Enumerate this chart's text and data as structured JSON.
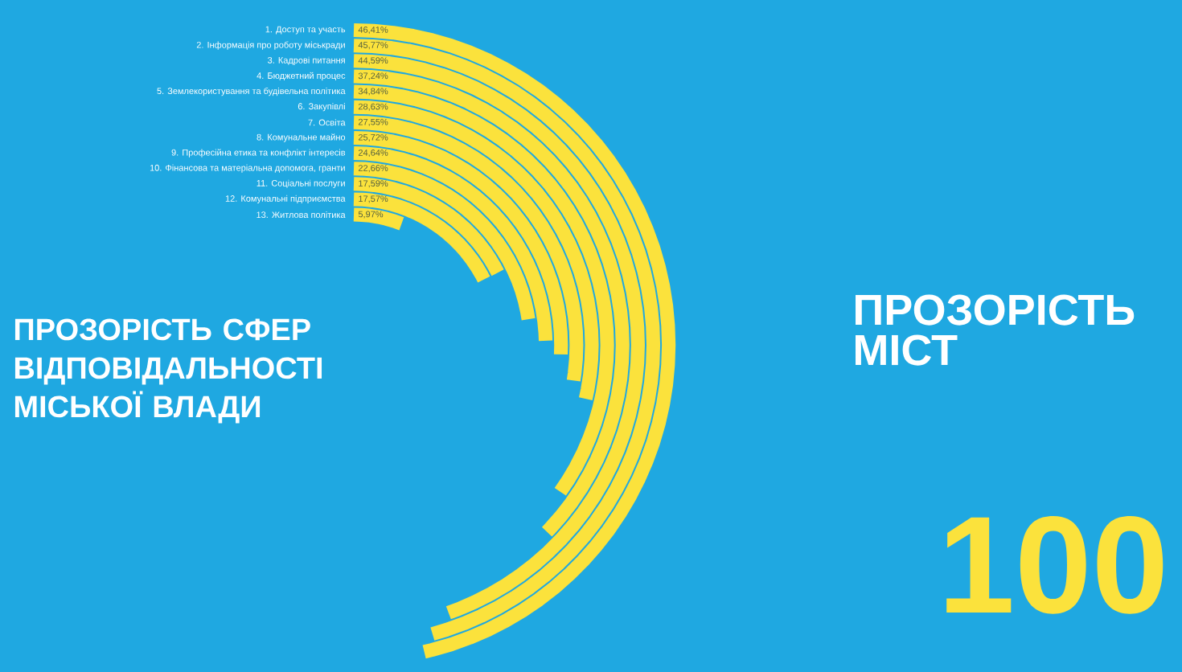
{
  "chart_data": {
    "type": "other",
    "title": "ПРОЗОРІСТЬ СФЕР ВІДПОВІДАЛЬНОСТІ МІСЬКОЇ ВЛАДИ",
    "categories": [
      "1. Доступ та участь",
      "2. Інформація про роботу міськради",
      "3. Кадрові питання",
      "4. Бюджетний процес",
      "5. Землекористування та будівельна політика",
      "6. Закупівлі",
      "7. Освіта",
      "8. Комунальне майно",
      "9. Професійна етика та конфлікт інтересів",
      "10. Фінансова та матеріальна допомога, гранти",
      "11. Соціальні послуги",
      "12. Комунальні підприємства",
      "13. Житлова політика"
    ],
    "values": [
      46.41,
      45.77,
      44.59,
      37.24,
      34.84,
      28.63,
      27.55,
      25.72,
      24.64,
      22.66,
      17.59,
      17.57,
      5.97
    ],
    "value_labels": [
      "46,41%",
      "45,77%",
      "44,59%",
      "37,24%",
      "34,84%",
      "28,63%",
      "27,55%",
      "25,72%",
      "24,64%",
      "22,66%",
      "17,59%",
      "17,57%",
      "5,97%"
    ],
    "color": "#fbe23c",
    "annotations": [
      "ПРОЗОРІСТЬ МІСТ",
      "100"
    ]
  }
}
